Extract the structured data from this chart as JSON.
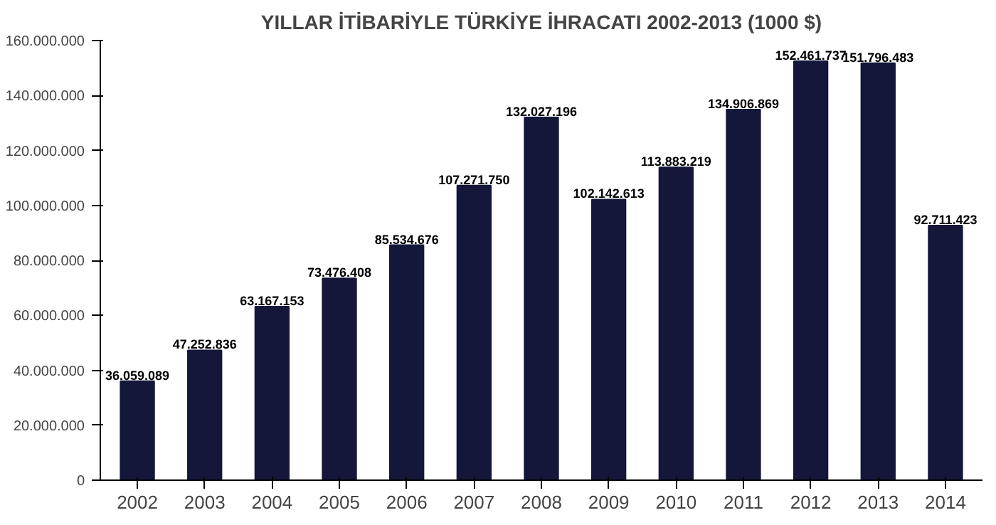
{
  "chart_data": {
    "type": "bar",
    "title": "YILLAR İTİBARİYLE TÜRKİYE İHRACATI 2002-2013 (1000 $)",
    "categories": [
      "2002",
      "2003",
      "2004",
      "2005",
      "2006",
      "2007",
      "2008",
      "2009",
      "2010",
      "2011",
      "2012",
      "2013",
      "2014"
    ],
    "values": [
      36059089,
      47252836,
      63167153,
      73476408,
      85534676,
      107271750,
      132027196,
      102142613,
      113883219,
      134906869,
      152461737,
      151796483,
      92711423
    ],
    "value_labels": [
      "36.059.089",
      "47.252.836",
      "63.167.153",
      "73.476.408",
      "85.534.676",
      "107.271.750",
      "132.027.196",
      "102.142.613",
      "113.883.219",
      "134.906.869",
      "152.461.737",
      "151.796.483",
      "92.711.423"
    ],
    "color": "#14163a",
    "ylim": [
      0,
      160000000
    ],
    "yticks": [
      {
        "value": 0,
        "label": "0"
      },
      {
        "value": 20000000,
        "label": "20.000.000"
      },
      {
        "value": 40000000,
        "label": "40.000.000"
      },
      {
        "value": 60000000,
        "label": "60.000.000"
      },
      {
        "value": 80000000,
        "label": "80.000.000"
      },
      {
        "value": 100000000,
        "label": "100.000.000"
      },
      {
        "value": 120000000,
        "label": "120.000.000"
      },
      {
        "value": 140000000,
        "label": "140.000.000"
      },
      {
        "value": 160000000,
        "label": "160.000.000"
      }
    ],
    "grid": false
  }
}
